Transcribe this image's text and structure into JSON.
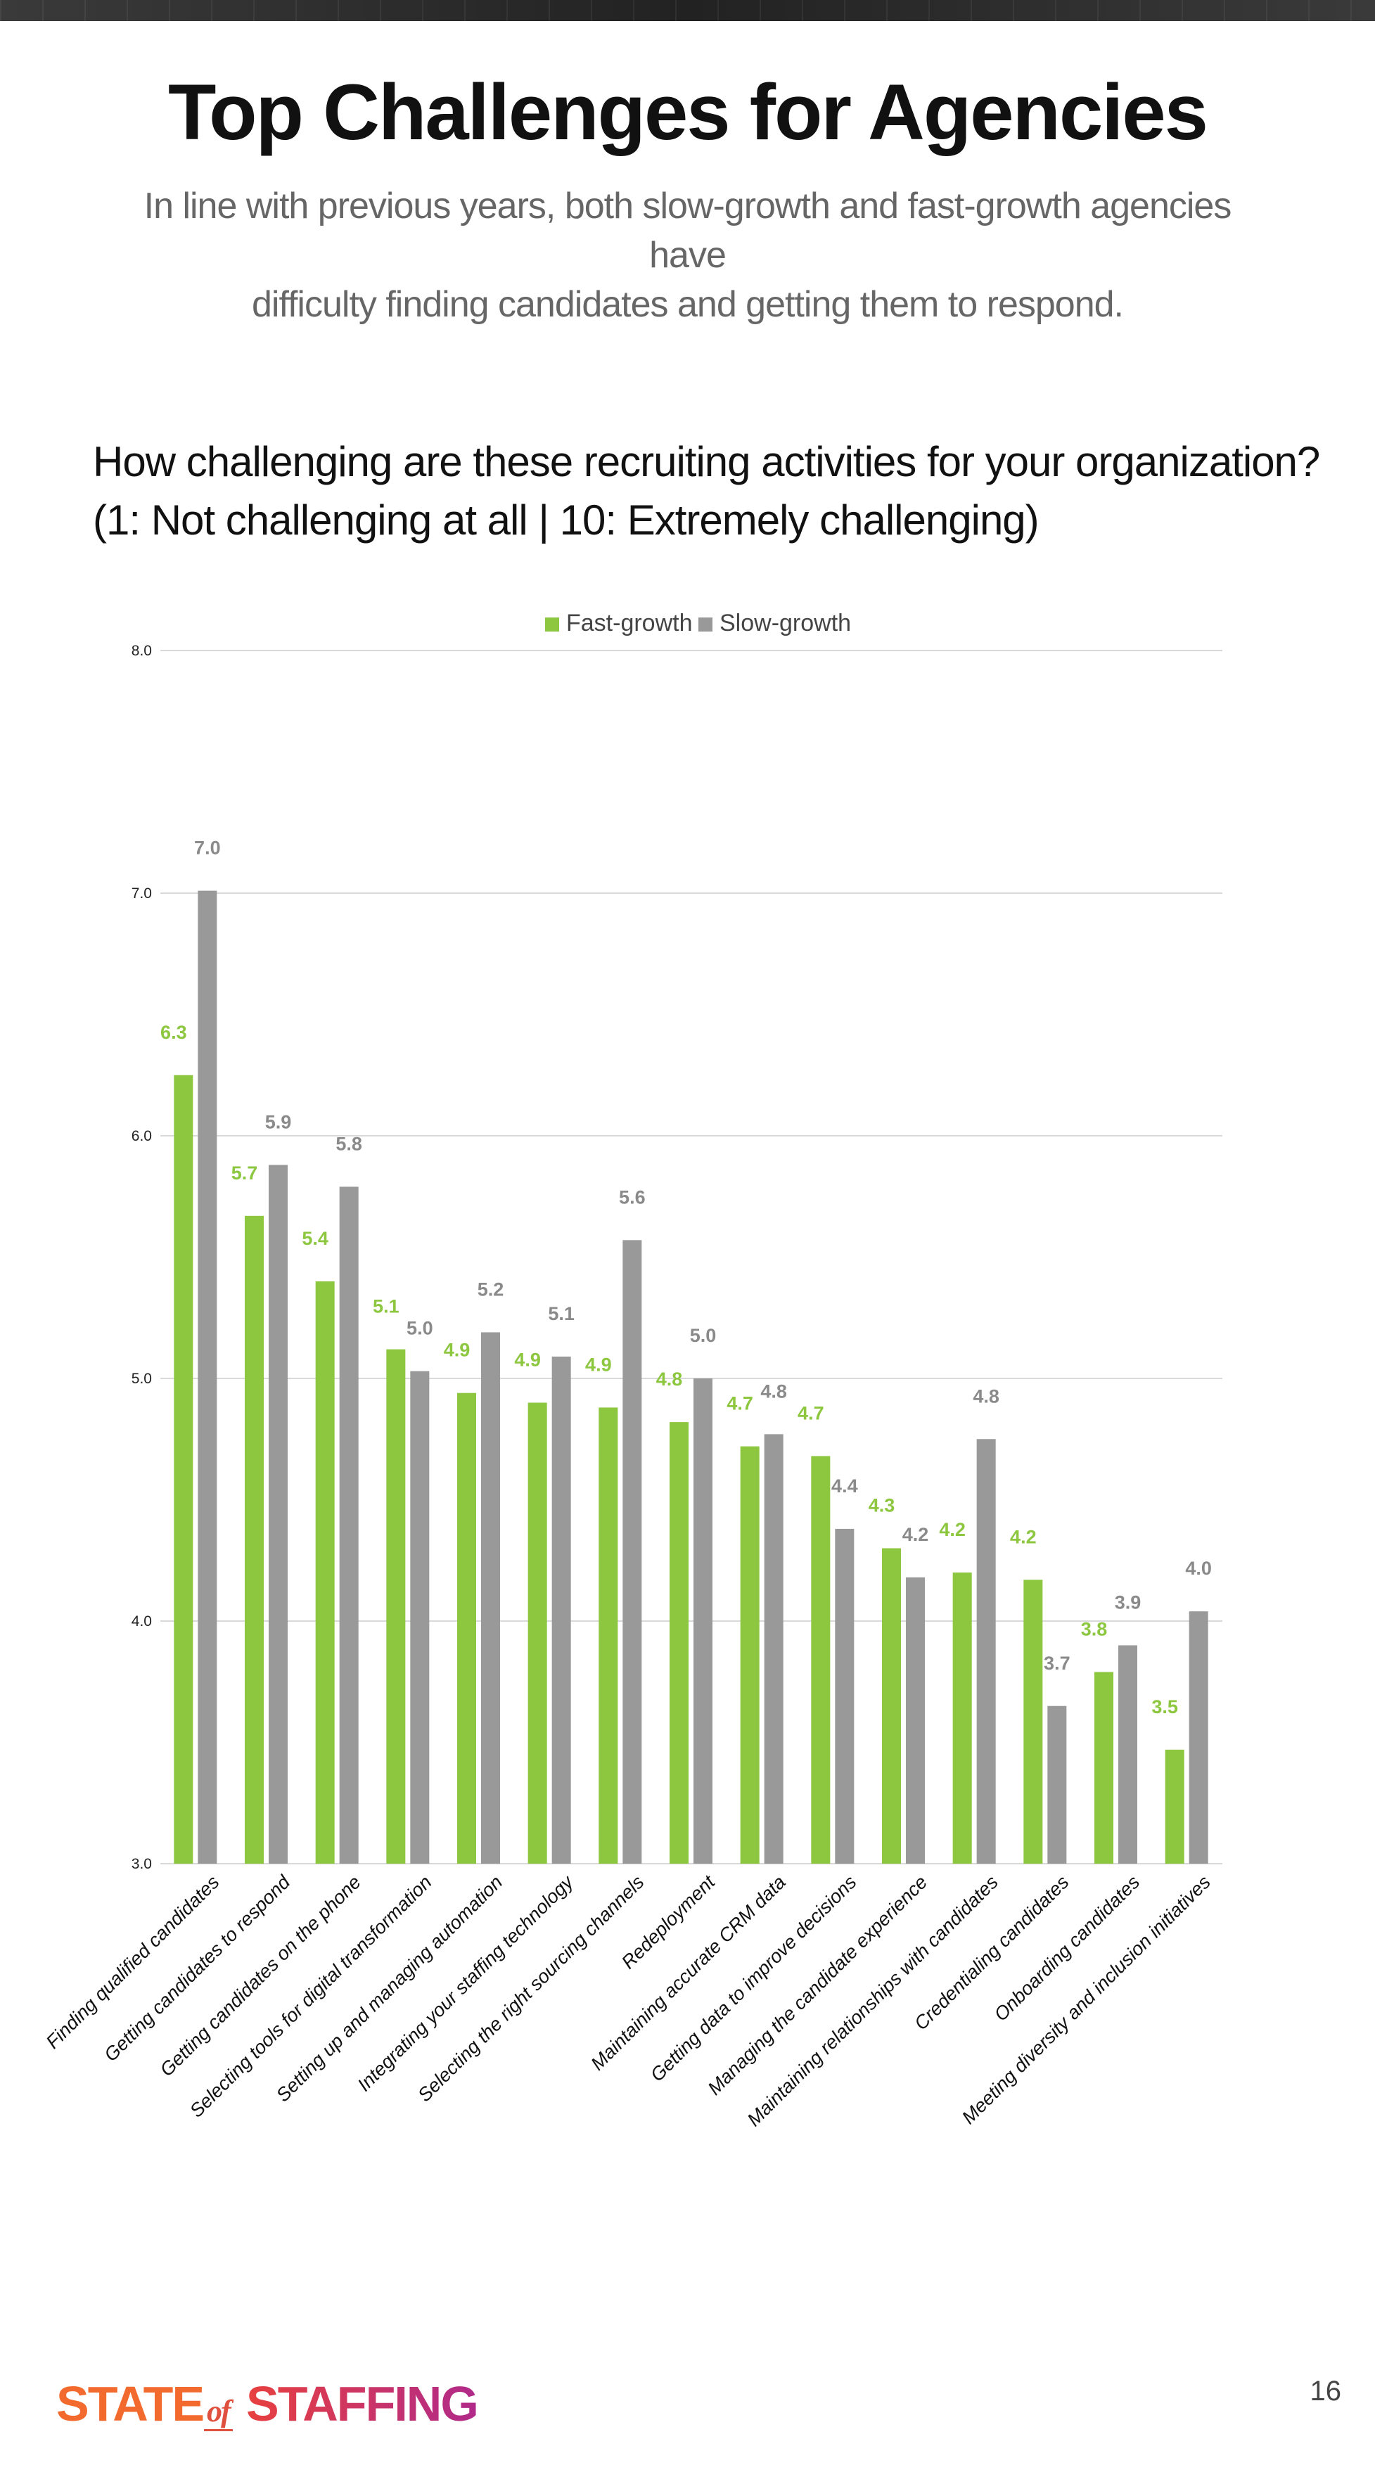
{
  "header": {
    "title": "Top Challenges for Agencies",
    "subtitle_line1": "In line with previous years, both slow-growth and fast-growth agencies have",
    "subtitle_line2": "difficulty finding candidates and getting them to respond."
  },
  "question": {
    "line1": "How challenging are these recruiting activities for your organization?",
    "line2": "(1: Not challenging at all | 10: Extremely challenging)"
  },
  "colors": {
    "fast_growth": "#8dc63f",
    "slow_growth": "#999999",
    "grid": "#d9d9d9",
    "axis_text": "#444444"
  },
  "chart_data": {
    "type": "bar",
    "title": "",
    "xlabel": "",
    "ylabel": "",
    "ylim": [
      3.0,
      8.0
    ],
    "yticks": [
      "3.0",
      "4.0",
      "5.0",
      "6.0",
      "7.0",
      "8.0"
    ],
    "grid": true,
    "legend": "top-center",
    "categories": [
      "Finding qualified candidates",
      "Getting candidates to respond",
      "Getting candidates on the phone",
      "Selecting tools for digital transformation",
      "Setting up and managing automation",
      "Integrating your staffing technology",
      "Selecting the right sourcing channels",
      "Redeployment",
      "Maintaining accurate CRM data",
      "Getting data to improve decisions",
      "Managing the candidate experience",
      "Maintaining relationships with candidates",
      "Credentialing candidates",
      "Onboarding candidates",
      "Meeting diversity and inclusion initiatives"
    ],
    "series": [
      {
        "name": "Fast-growth",
        "values": [
          6.25,
          5.67,
          5.4,
          5.12,
          4.94,
          4.9,
          4.88,
          4.82,
          4.72,
          4.68,
          4.3,
          4.2,
          4.17,
          3.79,
          3.47
        ],
        "labels": [
          "6.3",
          "5.7",
          "5.4",
          "5.1",
          "4.9",
          "4.9",
          "4.9",
          "4.8",
          "4.7",
          "4.7",
          "4.3",
          "4.2",
          "4.2",
          "3.8",
          "3.5"
        ]
      },
      {
        "name": "Slow-growth",
        "values": [
          7.01,
          5.88,
          5.79,
          5.03,
          5.19,
          5.09,
          5.57,
          5.0,
          4.77,
          4.38,
          4.18,
          4.75,
          3.65,
          3.9,
          4.04
        ],
        "labels": [
          "7.0",
          "5.9",
          "5.8",
          "5.0",
          "5.2",
          "5.1",
          "5.6",
          "5.0",
          "4.8",
          "4.4",
          "4.2",
          "4.8",
          "3.7",
          "3.9",
          "4.0"
        ]
      }
    ]
  },
  "footer": {
    "logo_state": "STATE",
    "logo_of": "of",
    "logo_staffing": "STAFFING",
    "page_number": "16"
  }
}
